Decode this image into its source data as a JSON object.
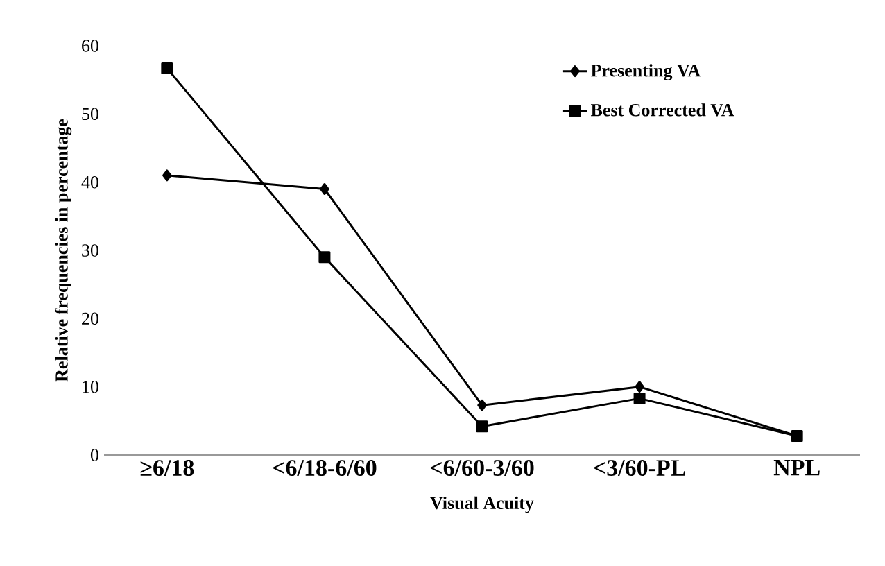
{
  "chart_data": {
    "type": "line",
    "xlabel": "Visual Acuity",
    "ylabel": "Relative frequencies in percentage",
    "categories": [
      "≥6/18",
      "<6/18-6/60",
      "<6/60-3/60",
      "<3/60-PL",
      "NPL"
    ],
    "series": [
      {
        "name": "Presenting VA",
        "color": "#000000",
        "marker": "diamond",
        "values": [
          41,
          39,
          7.3,
          10,
          2.8
        ]
      },
      {
        "name": "Best Corrected VA",
        "color": "#000000",
        "marker": "square",
        "values": [
          56.7,
          29,
          4.2,
          8.3,
          2.8
        ]
      }
    ],
    "ylim": [
      0,
      60
    ],
    "yticks": [
      0,
      10,
      20,
      30,
      40,
      50,
      60
    ],
    "legend": "top right",
    "grid": false,
    "line_style": "solid"
  }
}
